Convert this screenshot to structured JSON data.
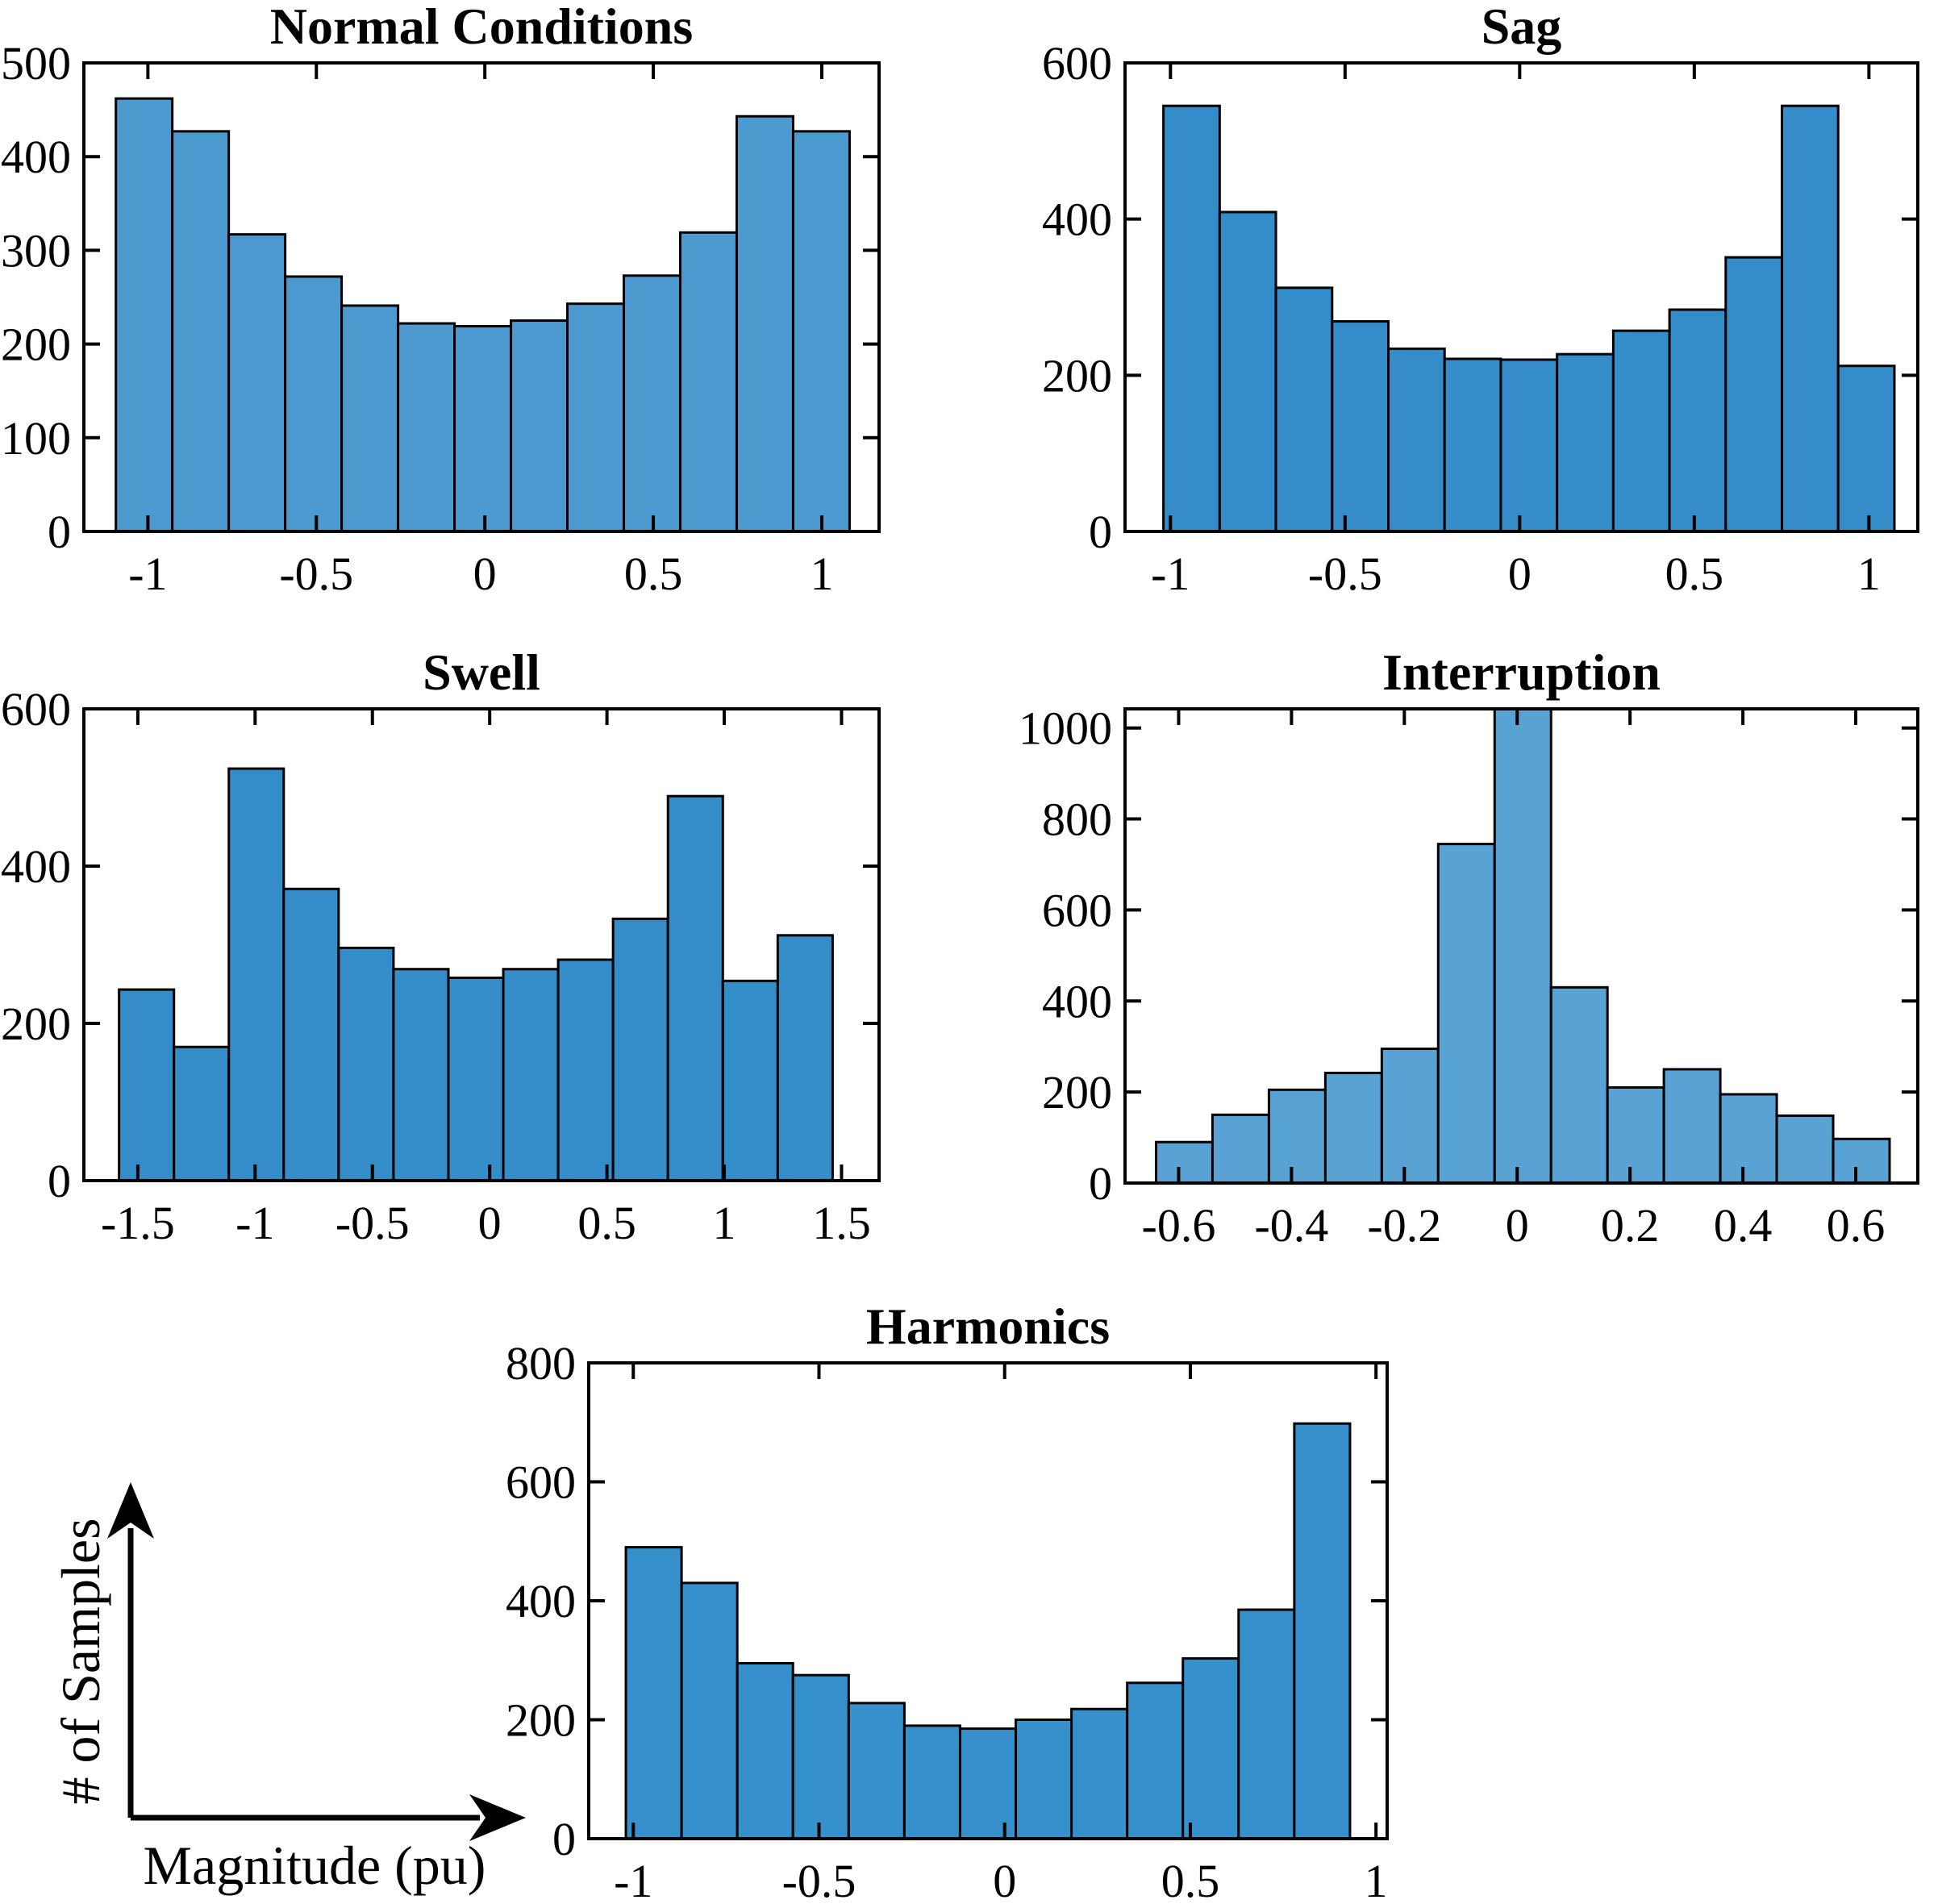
{
  "figure": {
    "shared_ylabel": "# of Samples",
    "shared_xlabel": "Magnitude (pu)",
    "background_color": "#ffffff",
    "axis_color": "#000000"
  },
  "chart_data": [
    {
      "id": "normal",
      "type": "bar",
      "title": "Normal Conditions",
      "xlabel": "Magnitude (pu)",
      "ylabel": "# of Samples",
      "bar_color": "#4C9ACF",
      "edge_color": "#000000",
      "bins_start": -1.095,
      "bin_width": 0.1675,
      "values": [
        462,
        427,
        317,
        272,
        241,
        222,
        219,
        225,
        243,
        273,
        319,
        443,
        427
      ],
      "xlim": [
        -1.19,
        1.17
      ],
      "ylim": [
        0,
        500
      ],
      "xticks": [
        -1,
        -0.5,
        0,
        0.5,
        1
      ],
      "xtick_labels": [
        "-1",
        "-0.5",
        "0",
        "0.5",
        "1"
      ],
      "yticks": [
        0,
        100,
        200,
        300,
        400,
        500
      ],
      "ytick_labels": [
        "0",
        "100",
        "200",
        "300",
        "400",
        "500"
      ],
      "grid": "off",
      "note": ""
    },
    {
      "id": "sag",
      "type": "bar",
      "title": "Sag",
      "xlabel": "Magnitude (pu)",
      "ylabel": "# of Samples",
      "bar_color": "#348DC9",
      "edge_color": "#000000",
      "bins_start": -1.02,
      "bin_width": 0.161,
      "values": [
        545,
        409,
        312,
        269,
        234,
        221,
        220,
        227,
        257,
        284,
        351,
        545,
        212
      ],
      "xlim": [
        -1.13,
        1.14
      ],
      "ylim": [
        0,
        600
      ],
      "xticks": [
        -1,
        -0.5,
        0,
        0.5,
        1
      ],
      "xtick_labels": [
        "-1",
        "-0.5",
        "0",
        "0.5",
        "1"
      ],
      "yticks": [
        0,
        200,
        400,
        600
      ],
      "ytick_labels": [
        "0",
        "200",
        "400",
        "600"
      ],
      "grid": "off",
      "note": ""
    },
    {
      "id": "swell",
      "type": "bar",
      "title": "Swell",
      "xlabel": "Magnitude (pu)",
      "ylabel": "# of Samples",
      "bar_color": "#348DC9",
      "edge_color": "#000000",
      "bins_start": -1.58,
      "bin_width": 0.234,
      "values": [
        243,
        170,
        524,
        371,
        296,
        269,
        258,
        269,
        281,
        333,
        489,
        254,
        312
      ],
      "xlim": [
        -1.73,
        1.66
      ],
      "ylim": [
        0,
        600
      ],
      "xticks": [
        -1.5,
        -1,
        -0.5,
        0,
        0.5,
        1,
        1.5
      ],
      "xtick_labels": [
        "-1.5",
        "-1",
        "-0.5",
        "0",
        "0.5",
        "1",
        "1.5"
      ],
      "yticks": [
        0,
        200,
        400,
        600
      ],
      "ytick_labels": [
        "0",
        "200",
        "400",
        "600"
      ],
      "grid": "off",
      "note": ""
    },
    {
      "id": "interruption",
      "type": "bar",
      "title": "Interruption",
      "xlabel": "Magnitude (pu)",
      "ylabel": "# of Samples",
      "bar_color": "#58A3D3",
      "edge_color": "#000000",
      "bins_start": -0.64,
      "bin_width": 0.1,
      "values": [
        90,
        150,
        205,
        242,
        295,
        745,
        1042,
        430,
        210,
        250,
        195,
        148,
        97
      ],
      "xlim": [
        -0.695,
        0.71
      ],
      "ylim": [
        0,
        1042
      ],
      "xticks": [
        -0.6,
        -0.4,
        -0.2,
        0,
        0.2,
        0.4,
        0.6
      ],
      "xtick_labels": [
        "-0.6",
        "-0.4",
        "-0.2",
        "0",
        "0.2",
        "0.4",
        "0.6"
      ],
      "yticks": [
        0,
        200,
        400,
        600,
        800,
        1000
      ],
      "ytick_labels": [
        "0",
        "200",
        "400",
        "600",
        "800",
        "1000"
      ],
      "grid": "off",
      "note": "center bar is clipped by the top of the axis"
    },
    {
      "id": "harmonics",
      "type": "bar",
      "title": "Harmonics",
      "xlabel": "Magnitude (pu)",
      "ylabel": "# of Samples",
      "bar_color": "#3590CB",
      "edge_color": "#000000",
      "bins_start": -1.02,
      "bin_width": 0.15,
      "values": [
        490,
        430,
        295,
        275,
        228,
        190,
        185,
        200,
        218,
        262,
        303,
        385,
        698
      ],
      "xlim": [
        -1.12,
        1.03
      ],
      "ylim": [
        0,
        800
      ],
      "xticks": [
        -1,
        -0.5,
        0,
        0.5,
        1
      ],
      "xtick_labels": [
        "-1",
        "-0.5",
        "0",
        "0.5",
        "1"
      ],
      "yticks": [
        0,
        200,
        400,
        600,
        800
      ],
      "ytick_labels": [
        "0",
        "200",
        "400",
        "600",
        "800"
      ],
      "grid": "off",
      "note": ""
    }
  ]
}
